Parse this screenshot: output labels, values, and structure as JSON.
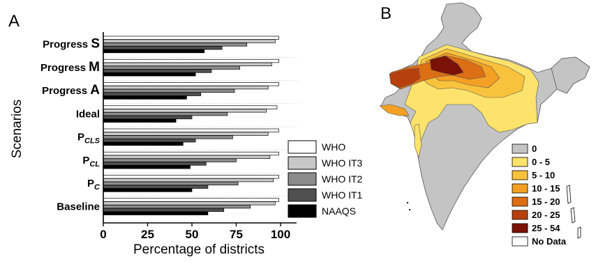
{
  "panel_a": {
    "label": "A"
  },
  "panel_b": {
    "label": "B"
  },
  "chart_data": [
    {
      "type": "bar",
      "orientation": "horizontal",
      "xlabel": "Percentage of districts",
      "ylabel": "Scenarios",
      "xlim": [
        0,
        100
      ],
      "xticks": [
        "0",
        "25",
        "50",
        "75",
        "100"
      ],
      "categories": [
        {
          "main": "Progress ",
          "big": "S",
          "sub": ""
        },
        {
          "main": "Progress ",
          "big": "M",
          "sub": ""
        },
        {
          "main": "Progress ",
          "big": "A",
          "sub": ""
        },
        {
          "main": "Ideal",
          "big": "",
          "sub": ""
        },
        {
          "main": "P",
          "big": "",
          "sub": "CLS"
        },
        {
          "main": "P",
          "big": "",
          "sub": "CL"
        },
        {
          "main": "P",
          "big": "",
          "sub": "C"
        },
        {
          "main": "Baseline",
          "big": "",
          "sub": ""
        }
      ],
      "series": [
        {
          "name": "WHO",
          "color": "#ffffff",
          "values": [
            99,
            99,
            99,
            98,
            99,
            99,
            99,
            99
          ]
        },
        {
          "name": "WHO IT3",
          "color": "#c8c8c8",
          "values": [
            97,
            95,
            93,
            92,
            93,
            94,
            96,
            97
          ]
        },
        {
          "name": "WHO IT2",
          "color": "#8c8c8c",
          "values": [
            81,
            77,
            74,
            70,
            73,
            75,
            76,
            83
          ]
        },
        {
          "name": "WHO IT1",
          "color": "#505050",
          "values": [
            67,
            61,
            55,
            50,
            52,
            58,
            59,
            68
          ]
        },
        {
          "name": "NAAQS",
          "color": "#000000",
          "values": [
            57,
            52,
            47,
            41,
            45,
            49,
            50,
            59
          ]
        }
      ],
      "legend_position": "bottom-right"
    },
    {
      "type": "map",
      "legend": [
        {
          "label": "0",
          "color": "#c4c4c4"
        },
        {
          "label": "0 - 5",
          "color": "#fde36b"
        },
        {
          "label": "5 - 10",
          "color": "#f9c23c"
        },
        {
          "label": "10 - 15",
          "color": "#f3a024"
        },
        {
          "label": "15 - 20",
          "color": "#dc6e14"
        },
        {
          "label": "20 - 25",
          "color": "#b8400f"
        },
        {
          "label": "25 - 54",
          "color": "#7a1208"
        },
        {
          "label": "No Data",
          "color": "#ffffff"
        }
      ]
    }
  ]
}
